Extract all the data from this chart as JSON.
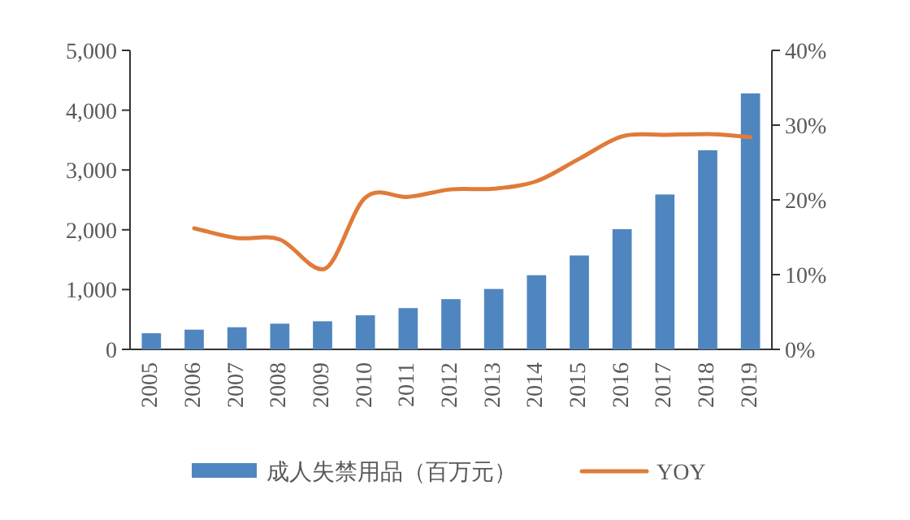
{
  "chart_data": {
    "type": "bar",
    "categories": [
      "2005",
      "2006",
      "2007",
      "2008",
      "2009",
      "2010",
      "2011",
      "2012",
      "2013",
      "2014",
      "2015",
      "2016",
      "2017",
      "2018",
      "2019"
    ],
    "series": [
      {
        "name": "成人失禁用品（百万元）",
        "color": "#4f86c0",
        "values": [
          270,
          330,
          370,
          430,
          470,
          570,
          690,
          840,
          1010,
          1240,
          1570,
          2010,
          2590,
          3330,
          4280
        ]
      },
      {
        "name": "YOY",
        "type": "line",
        "axis": "y2",
        "color": "#e07b39",
        "values": [
          null,
          16.2,
          14.9,
          14.7,
          10.7,
          20.3,
          20.4,
          21.4,
          21.5,
          22.5,
          25.5,
          28.5,
          28.7,
          28.8,
          28.4
        ]
      }
    ],
    "ylim": [
      0,
      5000
    ],
    "yticks": [
      {
        "value": 0,
        "label": "0"
      },
      {
        "value": 1000,
        "label": "1,000"
      },
      {
        "value": 2000,
        "label": "2,000"
      },
      {
        "value": 3000,
        "label": "3,000"
      },
      {
        "value": 4000,
        "label": "4,000"
      },
      {
        "value": 5000,
        "label": "5,000"
      }
    ],
    "y2lim": [
      0,
      40
    ],
    "y2ticks": [
      {
        "value": 0,
        "label": "0%"
      },
      {
        "value": 10,
        "label": "10%"
      },
      {
        "value": 20,
        "label": "20%"
      },
      {
        "value": 30,
        "label": "30%"
      },
      {
        "value": 40,
        "label": "40%"
      }
    ],
    "legend": "bottom",
    "grid": false
  }
}
